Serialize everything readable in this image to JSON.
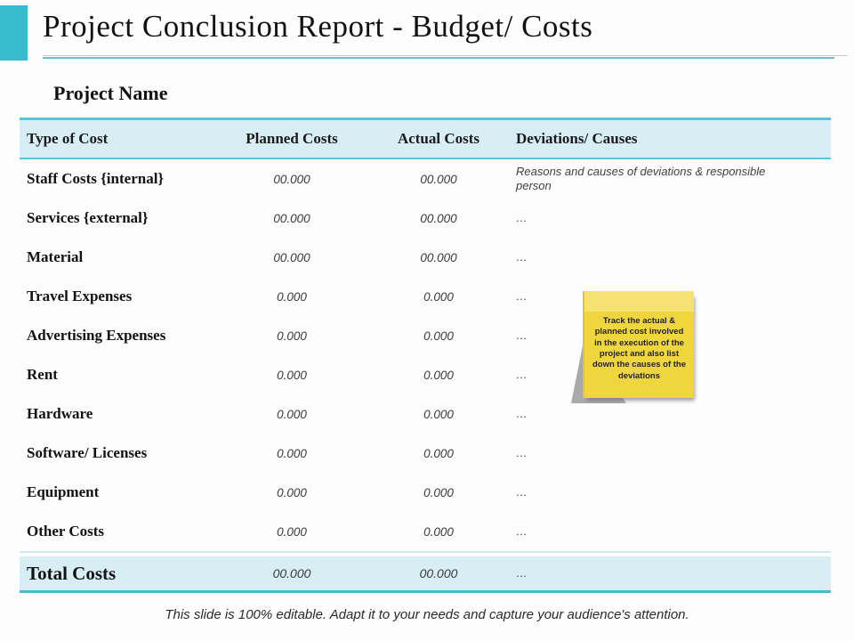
{
  "slide": {
    "title": "Project Conclusion Report - Budget/ Costs",
    "subtitle": "Project Name",
    "footer": "This slide is 100% editable.  Adapt it to your needs and capture your audience's attention."
  },
  "table": {
    "headers": {
      "type": "Type of Cost",
      "planned": "Planned Costs",
      "actual": "Actual Costs",
      "deviations": "Deviations/ Causes"
    },
    "rows": [
      {
        "label": "Staff Costs {internal}",
        "planned": "00.000",
        "actual": "00.000",
        "deviation": "Reasons and causes of deviations & responsible person"
      },
      {
        "label": "Services {external}",
        "planned": "00.000",
        "actual": "00.000",
        "deviation": "…"
      },
      {
        "label": "Material",
        "planned": "00.000",
        "actual": "00.000",
        "deviation": "…"
      },
      {
        "label": "Travel Expenses",
        "planned": "0.000",
        "actual": "0.000",
        "deviation": "…"
      },
      {
        "label": "Advertising Expenses",
        "planned": "0.000",
        "actual": "0.000",
        "deviation": "…"
      },
      {
        "label": "Rent",
        "planned": "0.000",
        "actual": "0.000",
        "deviation": "…"
      },
      {
        "label": "Hardware",
        "planned": "0.000",
        "actual": "0.000",
        "deviation": "…"
      },
      {
        "label": "Software/ Licenses",
        "planned": "0.000",
        "actual": "0.000",
        "deviation": "…"
      },
      {
        "label": "Equipment",
        "planned": "0.000",
        "actual": "0.000",
        "deviation": "…"
      },
      {
        "label": "Other Costs",
        "planned": "0.000",
        "actual": "0.000",
        "deviation": "…"
      }
    ],
    "total": {
      "label": "Total Costs",
      "planned": "00.000",
      "actual": "00.000",
      "deviation": "…"
    }
  },
  "sticky_note": {
    "text": "Track the actual & planned cost involved in the execution of the project and also list down the causes of the deviations"
  },
  "colors": {
    "accent_teal": "#35bccd",
    "table_border_teal": "#57c5d5",
    "header_fill": "#d8eef5",
    "note_yellow": "#f0d63e",
    "note_strip_yellow": "#f5e272",
    "note_shadow_gray": "#a9a9a9"
  }
}
